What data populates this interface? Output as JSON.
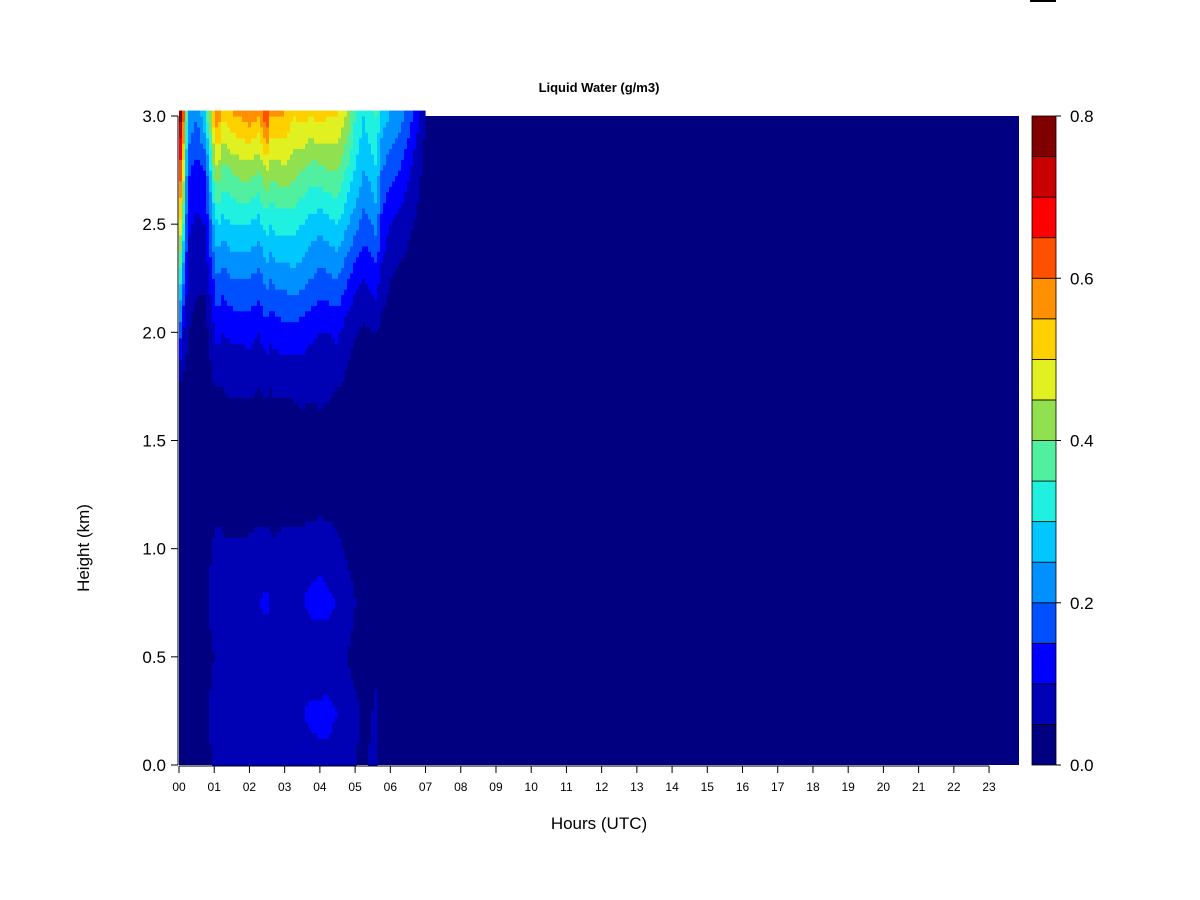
{
  "chart_data": {
    "type": "heatmap",
    "title": "Liquid Water (g/m3)",
    "xlabel": "Hours (UTC)",
    "ylabel": "Height (km)",
    "x_ticks": [
      "00",
      "01",
      "02",
      "03",
      "04",
      "05",
      "06",
      "07",
      "08",
      "09",
      "10",
      "11",
      "12",
      "13",
      "14",
      "15",
      "16",
      "17",
      "18",
      "19",
      "20",
      "21",
      "22",
      "23"
    ],
    "y_ticks": [
      "0.0",
      "0.5",
      "1.0",
      "1.5",
      "2.0",
      "2.5",
      "3.0"
    ],
    "xlim": [
      0,
      23.85
    ],
    "ylim": [
      0,
      3.0
    ],
    "colorbar": {
      "ticks": [
        "0.0",
        "0.2",
        "0.4",
        "0.6",
        "0.8"
      ],
      "range": [
        0,
        0.8
      ],
      "levels": [
        0,
        0.05,
        0.1,
        0.15,
        0.2,
        0.25,
        0.3,
        0.35,
        0.4,
        0.45,
        0.5,
        0.55,
        0.6,
        0.65,
        0.7,
        0.75,
        0.8
      ],
      "colors": [
        "#000080",
        "#0000b4",
        "#0000ff",
        "#0050ff",
        "#0090ff",
        "#00c8ff",
        "#20f0e0",
        "#50f0a0",
        "#90e050",
        "#e0f020",
        "#ffd000",
        "#ff9000",
        "#ff5000",
        "#ff0000",
        "#c80000",
        "#800000"
      ]
    },
    "grid": false,
    "hours": [
      0.0,
      0.1,
      0.25,
      0.5,
      0.75,
      1.0,
      1.1,
      1.25,
      1.5,
      1.75,
      2.0,
      2.25,
      2.5,
      2.6,
      2.75,
      3.0,
      3.25,
      3.5,
      3.75,
      4.0,
      4.25,
      4.5,
      4.75,
      5.0,
      5.25,
      5.5,
      5.6,
      5.75,
      6.0,
      6.25,
      6.5,
      6.75,
      7.0,
      7.5,
      8.0,
      23.85
    ],
    "heights_km": [
      0.0,
      0.25,
      0.5,
      0.75,
      1.0,
      1.25,
      1.5,
      1.75,
      2.0,
      2.25,
      2.5,
      2.75,
      3.0
    ],
    "liquid_water_g_m3": [
      [
        0.02,
        0.04,
        0.03,
        0.03,
        0.05,
        0.02,
        0.02,
        0.03,
        0.22,
        0.36,
        0.55,
        0.68,
        0.8
      ],
      [
        0.03,
        0.05,
        0.03,
        0.04,
        0.03,
        0.02,
        0.02,
        0.03,
        0.1,
        0.24,
        0.4,
        0.55,
        0.7
      ],
      [
        0.02,
        0.03,
        0.02,
        0.03,
        0.02,
        0.01,
        0.02,
        0.03,
        0.05,
        0.08,
        0.11,
        0.16,
        0.25
      ],
      [
        0.03,
        0.04,
        0.03,
        0.04,
        0.03,
        0.01,
        0.01,
        0.02,
        0.03,
        0.06,
        0.09,
        0.13,
        0.2
      ],
      [
        0.02,
        0.03,
        0.02,
        0.03,
        0.02,
        0.01,
        0.01,
        0.02,
        0.03,
        0.06,
        0.1,
        0.15,
        0.3
      ],
      [
        0.06,
        0.08,
        0.05,
        0.09,
        0.06,
        0.02,
        0.02,
        0.05,
        0.09,
        0.16,
        0.26,
        0.4,
        0.55
      ],
      [
        0.07,
        0.1,
        0.06,
        0.1,
        0.07,
        0.02,
        0.02,
        0.05,
        0.12,
        0.2,
        0.3,
        0.45,
        0.6
      ],
      [
        0.06,
        0.08,
        0.05,
        0.09,
        0.06,
        0.02,
        0.02,
        0.05,
        0.1,
        0.17,
        0.28,
        0.38,
        0.5
      ],
      [
        0.06,
        0.08,
        0.05,
        0.09,
        0.06,
        0.02,
        0.02,
        0.06,
        0.11,
        0.2,
        0.3,
        0.4,
        0.55
      ],
      [
        0.06,
        0.08,
        0.05,
        0.09,
        0.06,
        0.02,
        0.02,
        0.06,
        0.11,
        0.2,
        0.3,
        0.42,
        0.55
      ],
      [
        0.06,
        0.07,
        0.05,
        0.09,
        0.06,
        0.02,
        0.02,
        0.06,
        0.12,
        0.2,
        0.3,
        0.42,
        0.58
      ],
      [
        0.07,
        0.09,
        0.06,
        0.1,
        0.07,
        0.02,
        0.02,
        0.05,
        0.1,
        0.18,
        0.28,
        0.4,
        0.55
      ],
      [
        0.08,
        0.1,
        0.06,
        0.11,
        0.07,
        0.02,
        0.02,
        0.06,
        0.13,
        0.22,
        0.32,
        0.45,
        0.65
      ],
      [
        0.07,
        0.09,
        0.06,
        0.1,
        0.06,
        0.02,
        0.02,
        0.05,
        0.11,
        0.2,
        0.3,
        0.42,
        0.55
      ],
      [
        0.07,
        0.08,
        0.06,
        0.09,
        0.06,
        0.02,
        0.02,
        0.06,
        0.12,
        0.22,
        0.32,
        0.42,
        0.55
      ],
      [
        0.07,
        0.1,
        0.06,
        0.1,
        0.07,
        0.02,
        0.02,
        0.06,
        0.13,
        0.22,
        0.32,
        0.44,
        0.55
      ],
      [
        0.07,
        0.1,
        0.06,
        0.1,
        0.07,
        0.02,
        0.02,
        0.06,
        0.13,
        0.23,
        0.32,
        0.42,
        0.5
      ],
      [
        0.07,
        0.1,
        0.06,
        0.1,
        0.07,
        0.02,
        0.02,
        0.07,
        0.12,
        0.22,
        0.3,
        0.4,
        0.52
      ],
      [
        0.08,
        0.11,
        0.07,
        0.11,
        0.08,
        0.02,
        0.02,
        0.06,
        0.11,
        0.2,
        0.28,
        0.38,
        0.5
      ],
      [
        0.09,
        0.11,
        0.07,
        0.11,
        0.09,
        0.02,
        0.02,
        0.07,
        0.1,
        0.18,
        0.27,
        0.38,
        0.52
      ],
      [
        0.09,
        0.11,
        0.07,
        0.11,
        0.08,
        0.02,
        0.02,
        0.06,
        0.1,
        0.19,
        0.28,
        0.4,
        0.5
      ],
      [
        0.08,
        0.1,
        0.06,
        0.1,
        0.06,
        0.02,
        0.02,
        0.05,
        0.11,
        0.2,
        0.3,
        0.4,
        0.5
      ],
      [
        0.07,
        0.08,
        0.05,
        0.08,
        0.04,
        0.02,
        0.02,
        0.04,
        0.07,
        0.16,
        0.26,
        0.35,
        0.45
      ],
      [
        0.05,
        0.06,
        0.03,
        0.05,
        0.03,
        0.01,
        0.01,
        0.03,
        0.05,
        0.12,
        0.22,
        0.3,
        0.35
      ],
      [
        0.04,
        0.04,
        0.02,
        0.03,
        0.02,
        0.01,
        0.01,
        0.02,
        0.04,
        0.1,
        0.18,
        0.25,
        0.3
      ],
      [
        0.06,
        0.05,
        0.03,
        0.04,
        0.02,
        0.01,
        0.01,
        0.02,
        0.05,
        0.12,
        0.2,
        0.28,
        0.35
      ],
      [
        0.07,
        0.06,
        0.04,
        0.05,
        0.02,
        0.01,
        0.01,
        0.02,
        0.05,
        0.13,
        0.22,
        0.3,
        0.35
      ],
      [
        0.02,
        0.02,
        0.02,
        0.02,
        0.01,
        0.01,
        0.01,
        0.01,
        0.03,
        0.08,
        0.14,
        0.2,
        0.28
      ],
      [
        0.01,
        0.01,
        0.01,
        0.01,
        0.01,
        0.01,
        0.01,
        0.01,
        0.02,
        0.05,
        0.1,
        0.17,
        0.25
      ],
      [
        0.01,
        0.01,
        0.01,
        0.01,
        0.01,
        0.01,
        0.01,
        0.01,
        0.02,
        0.04,
        0.08,
        0.15,
        0.22
      ],
      [
        0.01,
        0.01,
        0.01,
        0.01,
        0.01,
        0.01,
        0.01,
        0.01,
        0.01,
        0.03,
        0.06,
        0.11,
        0.18
      ],
      [
        0.01,
        0.01,
        0.01,
        0.01,
        0.01,
        0.01,
        0.01,
        0.01,
        0.01,
        0.02,
        0.04,
        0.07,
        0.12
      ],
      [
        0.01,
        0.01,
        0.01,
        0.01,
        0.01,
        0.01,
        0.01,
        0.01,
        0.01,
        0.01,
        0.02,
        0.03,
        0.04
      ],
      [
        0.0,
        0.0,
        0.0,
        0.0,
        0.0,
        0.0,
        0.0,
        0.0,
        0.0,
        0.0,
        0.0,
        0.01,
        0.01
      ],
      [
        0.0,
        0.0,
        0.0,
        0.0,
        0.0,
        0.0,
        0.0,
        0.0,
        0.0,
        0.0,
        0.0,
        0.0,
        0.0
      ],
      [
        0.0,
        0.0,
        0.0,
        0.0,
        0.0,
        0.0,
        0.0,
        0.0,
        0.0,
        0.0,
        0.0,
        0.0,
        0.0
      ]
    ]
  }
}
